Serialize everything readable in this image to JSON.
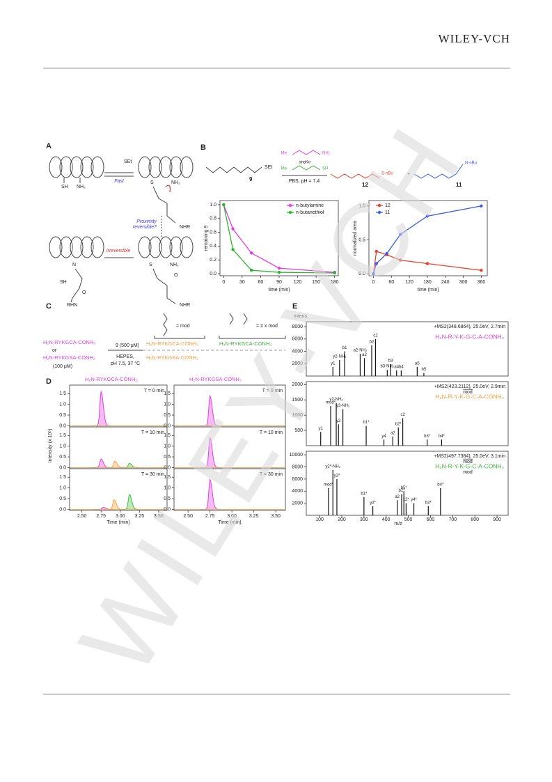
{
  "header": {
    "logo": "WILEY-VCH"
  },
  "watermark": "WILEY-VCH",
  "panel_a": {
    "label": "A",
    "fast": "Fast",
    "proximity": [
      "Proximity",
      "reversible?"
    ],
    "irreversible": "Irreversible",
    "groups": [
      "SH",
      "NH₂",
      "S",
      "NH₂",
      "NHR",
      "S",
      "NH₂",
      "O",
      "NHR",
      "SH",
      "N",
      "RHN",
      "SEt",
      "O"
    ]
  },
  "panel_b": {
    "label": "B",
    "scheme": {
      "reagent_9": "9",
      "amine_me": "Me",
      "amine_nh2": "NH₂",
      "andor": "and/or",
      "thiol_me": "Me",
      "thiol_sh": "SH",
      "conditions": "PBS, pH = 7.4",
      "product_12": "12",
      "plus": "+",
      "product_11": "11",
      "set": "SEt",
      "snbu": "S-nBu",
      "nnbu": "N-nBu"
    },
    "plots": [
      {
        "type": "line",
        "ylabel": "remaining 9",
        "xlabel": "time (min)",
        "xlim": [
          -6,
          186
        ],
        "ylim": [
          -0.03,
          1.06
        ],
        "xticks": [
          0,
          30,
          60,
          90,
          120,
          150,
          180
        ],
        "yticks": [
          {
            "value": 0,
            "label": "0.0"
          },
          0.2,
          0.4,
          0.6,
          0.8,
          {
            "value": 1,
            "label": "1.0"
          }
        ],
        "x": [
          0,
          15,
          45,
          90,
          180
        ],
        "series": [
          {
            "name": "n-butylamine",
            "color": "#e63be6",
            "values": [
              1.0,
              0.65,
              0.3,
              0.08,
              0.02
            ]
          },
          {
            "name": "n-butanethiol",
            "color": "#2db52d",
            "values": [
              1.0,
              0.35,
              0.05,
              0.02,
              0.01
            ]
          }
        ]
      },
      {
        "type": "line",
        "ylabel": "normalized area",
        "xlabel": "time (min)",
        "xlim": [
          -15,
          380
        ],
        "ylim": [
          -0.03,
          1.08
        ],
        "xticks": [
          0,
          60,
          120,
          180,
          240,
          300,
          360
        ],
        "yticks": [
          {
            "value": 0,
            "label": "0.0"
          },
          0.5,
          {
            "value": 1,
            "label": "1.0"
          }
        ],
        "x": [
          0,
          10,
          45,
          90,
          180,
          360
        ],
        "series": [
          {
            "name": "12",
            "color": "#e8412c",
            "values": [
              0,
              0.33,
              0.28,
              0.2,
              0.15,
              0.05
            ]
          },
          {
            "name": "11",
            "color": "#3b5ce8",
            "values": [
              0,
              0.15,
              0.3,
              0.58,
              0.85,
              1.0
            ]
          }
        ]
      }
    ]
  },
  "panel_c": {
    "label": "C",
    "peptide_c": "H₂N-RYKGCA-CONH₂",
    "or": "or",
    "peptide_s": "H₂N-RYKGSA-CONH₂",
    "peptide_conc": "(100 μM)",
    "reagent": "9 (500 μM)",
    "buffer": "HEPES,",
    "conditions": "pH 7.5, 37 °C",
    "mod_eq": "= mod",
    "mod2_eq": "= 2 x mod",
    "product_mod": "H₂N-RYKGCA-CONH₂",
    "product_s": "H₂N-RYKGSA-CONH₂",
    "product_2mod": "H₂N-RYKGCA-CONH₂"
  },
  "panel_d": {
    "label": "D",
    "ylabel": "Intensity (x 10⁶)",
    "xlabel": "Time (min)",
    "xlim": [
      2.34,
      3.61
    ],
    "ylim": [
      -0.05,
      1.9
    ],
    "xticks": [
      {
        "value": 2.5,
        "label": "2.50"
      },
      2.75,
      {
        "value": 3,
        "label": "3.00"
      },
      3.25,
      {
        "value": 3.5,
        "label": "3.50"
      }
    ],
    "yticks": [
      {
        "value": 0,
        "label": "0.0"
      },
      0.5,
      {
        "value": 1,
        "label": "1.0"
      },
      1.5
    ],
    "columns": [
      {
        "title": "H₂N-RYKGCA-CONH₂",
        "rows": [
          {
            "label": "T = 0 min",
            "traces": [
              {
                "color": "#e040e0",
                "peaks": [
                  {
                    "time": 2.75,
                    "height": 1.6
                  }
                ]
              }
            ]
          },
          {
            "label": "T = 10 min",
            "traces": [
              {
                "color": "#e040e0",
                "peaks": [
                  {
                    "time": 2.75,
                    "height": 0.4
                  }
                ]
              },
              {
                "color": "#f5a040",
                "peaks": [
                  {
                    "time": 2.93,
                    "height": 0.3
                  }
                ]
              },
              {
                "color": "#40c040",
                "peaks": [
                  {
                    "time": 3.12,
                    "height": 0.2
                  }
                ]
              }
            ]
          },
          {
            "label": "T = 30 min",
            "traces": [
              {
                "color": "#e040e0",
                "peaks": [
                  {
                    "time": 2.78,
                    "height": 0.1
                  }
                ]
              },
              {
                "color": "#f5a040",
                "peaks": [
                  {
                    "time": 2.92,
                    "height": 0.45
                  }
                ]
              },
              {
                "color": "#40c040",
                "peaks": [
                  {
                    "time": 3.12,
                    "height": 0.7
                  }
                ]
              }
            ]
          }
        ]
      },
      {
        "title": "H₂N-RYKGSA-CONH₂",
        "rows": [
          {
            "label": "T = 0 min",
            "traces": [
              {
                "color": "#e040e0",
                "peaks": [
                  {
                    "time": 2.75,
                    "height": 1.4
                  }
                ]
              }
            ]
          },
          {
            "label": "T = 10 min",
            "traces": [
              {
                "color": "#e040e0",
                "peaks": [
                  {
                    "time": 2.75,
                    "height": 1.4
                  }
                ]
              }
            ]
          },
          {
            "label": "T = 30 min",
            "traces": [
              {
                "color": "#e040e0",
                "peaks": [
                  {
                    "time": 2.75,
                    "height": 1.4
                  }
                ]
              }
            ]
          }
        ]
      }
    ]
  },
  "panel_e": {
    "label": "E",
    "ylabel": "Intens.",
    "xlabel": "m/z",
    "xlim": [
      40,
      950
    ],
    "xticks": [
      100,
      200,
      300,
      400,
      500,
      600,
      700,
      800,
      900
    ],
    "spectra": [
      {
        "header": "+MS2(348.6864), 25.0eV, 2.7min",
        "sequence": "H₂N-R-Y-K-G-C-A-CONH₂",
        "color": "#e040e0",
        "ylim": [
          0,
          8800
        ],
        "yticks": [
          2000,
          4000,
          6000,
          8000
        ],
        "peaks": [
          {
            "mz": 160,
            "intensity": 1500,
            "label": "y1"
          },
          {
            "mz": 190,
            "intensity": 2600,
            "label": "y2-NH₂"
          },
          {
            "mz": 213,
            "intensity": 4000,
            "label": "b1"
          },
          {
            "mz": 283,
            "intensity": 3600,
            "label": "a2-NH₂"
          },
          {
            "mz": 302,
            "intensity": 2900,
            "label": "a2"
          },
          {
            "mz": 335,
            "intensity": 5000,
            "label": "b2"
          },
          {
            "mz": 352,
            "intensity": 6000,
            "label": "c2"
          },
          {
            "mz": 405,
            "intensity": 1000,
            "label": "b3-NH₂"
          },
          {
            "mz": 420,
            "intensity": 1900,
            "label": "b3"
          },
          {
            "mz": 447,
            "intensity": 900,
            "label": "a4"
          },
          {
            "mz": 468,
            "intensity": 900,
            "label": "b4"
          },
          {
            "mz": 540,
            "intensity": 1500,
            "label": "a5"
          },
          {
            "mz": 570,
            "intensity": 500,
            "label": "b5"
          }
        ]
      },
      {
        "header": "+MS2(423.2112), 25.0eV, 2.9min",
        "sequence": "H₂N-R-Y-K-G-C-A-CONH₂",
        "mod": "mod",
        "color": "#f5a040",
        "ylim": [
          0,
          2100
        ],
        "yticks": [
          500,
          1000,
          1500,
          2000
        ],
        "peaks": [
          {
            "mz": 105,
            "intensity": 450,
            "label": "y1"
          },
          {
            "mz": 150,
            "intensity": 1300,
            "label": "mod*"
          },
          {
            "mz": 175,
            "intensity": 1400,
            "label": "y2-NH₂"
          },
          {
            "mz": 185,
            "intensity": 700,
            "label": "y2"
          },
          {
            "mz": 205,
            "intensity": 1200,
            "label": "y3-NH₂"
          },
          {
            "mz": 310,
            "intensity": 650,
            "label": "b1*"
          },
          {
            "mz": 390,
            "intensity": 200,
            "label": "y4"
          },
          {
            "mz": 430,
            "intensity": 300,
            "label": "a2"
          },
          {
            "mz": 455,
            "intensity": 600,
            "label": "b2*"
          },
          {
            "mz": 475,
            "intensity": 900,
            "label": "c2"
          },
          {
            "mz": 585,
            "intensity": 200,
            "label": "b3*"
          },
          {
            "mz": 650,
            "intensity": 200,
            "label": "b4*"
          }
        ]
      },
      {
        "header": "+MS2(497.7384), 25.0eV, 3.1min",
        "sequence": "H₂N-R-Y-K-G-C-A-CONH₂",
        "mod": "mod",
        "mod_bottom": "mod",
        "color": "#40b040",
        "ylim": [
          0,
          10600
        ],
        "yticks": [
          2000,
          4000,
          6000,
          8000,
          10000
        ],
        "peaks": [
          {
            "mz": 140,
            "intensity": 4500,
            "label": "mod*"
          },
          {
            "mz": 160,
            "intensity": 7500,
            "label": "y2*-NH₂"
          },
          {
            "mz": 178,
            "intensity": 6000,
            "label": "y2*"
          },
          {
            "mz": 300,
            "intensity": 3000,
            "label": "b1*"
          },
          {
            "mz": 340,
            "intensity": 1500,
            "label": "y2*"
          },
          {
            "mz": 450,
            "intensity": 2500,
            "label": "a2"
          },
          {
            "mz": 470,
            "intensity": 3500,
            "label": "b2*"
          },
          {
            "mz": 480,
            "intensity": 4000,
            "label": "b5*"
          },
          {
            "mz": 490,
            "intensity": 2000,
            "label": "c2*"
          },
          {
            "mz": 525,
            "intensity": 2000,
            "label": "y4*"
          },
          {
            "mz": 590,
            "intensity": 1500,
            "label": "b3*"
          },
          {
            "mz": 645,
            "intensity": 4500,
            "label": "b4*"
          }
        ]
      }
    ]
  }
}
